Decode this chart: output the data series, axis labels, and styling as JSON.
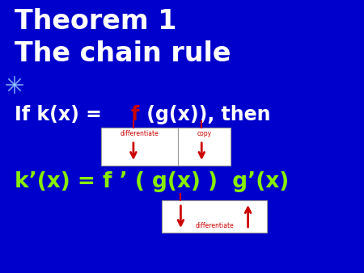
{
  "bg_color": "#0000cc",
  "title_color": "#ffffff",
  "title_fontsize": 24,
  "title_weight": "bold",
  "title_line1": "Theorem 1",
  "title_line2": "The chain rule",
  "white_color": "#ffffff",
  "red_color": "#cc0000",
  "green_color": "#88ee00",
  "line1_fontsize": 17,
  "line2_fontsize": 19,
  "differentiate_label": "differentiate",
  "copy_label": "copy",
  "star_color": "#99ccff"
}
